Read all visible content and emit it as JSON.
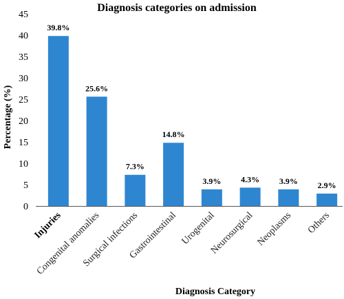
{
  "chart_data": {
    "type": "bar",
    "title": "Diagnosis categories on admission",
    "xlabel": "Diagnosis Category",
    "ylabel": "Percentage (%)",
    "ylim": [
      0,
      45
    ],
    "yticks": [
      0,
      5,
      10,
      15,
      20,
      25,
      30,
      35,
      40,
      45
    ],
    "grid": false,
    "bar_color": "#2e86d1",
    "categories": [
      "Injuries",
      "Congenital anomalies",
      "Surgical infections",
      "Gastrointestinal",
      "Urogenital",
      "Neurosurgical",
      "Neoplasms",
      "Others"
    ],
    "values": [
      39.8,
      25.6,
      7.3,
      14.8,
      3.9,
      4.3,
      3.9,
      2.9
    ],
    "data_labels": [
      "39.8%",
      "25.6%",
      "7.3%",
      "14.8%",
      "3.9%",
      "4.3%",
      "3.9%",
      "2.9%"
    ],
    "bold_categories": [
      "Injuries"
    ]
  }
}
